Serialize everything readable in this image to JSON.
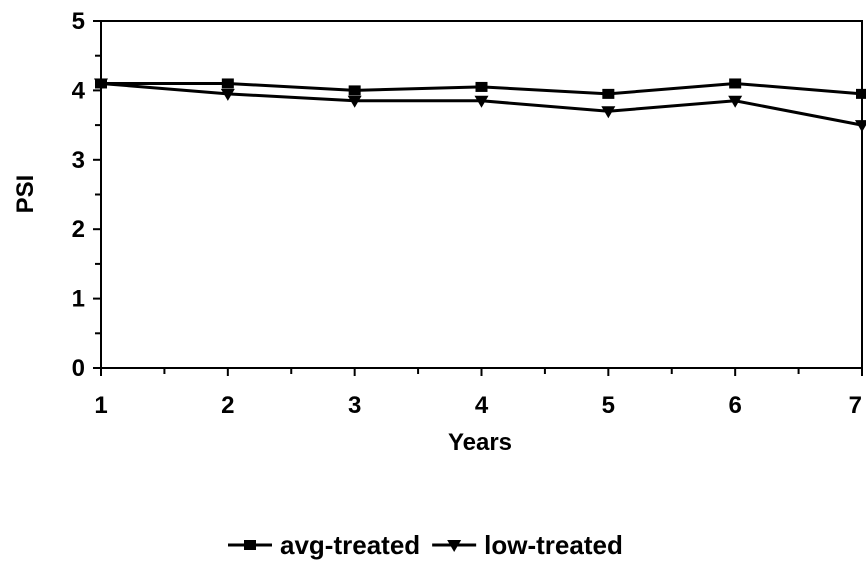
{
  "chart_data": {
    "type": "line",
    "title": "",
    "xlabel": "Years",
    "ylabel": "PSI",
    "x": [
      1,
      2,
      3,
      4,
      5,
      6,
      7
    ],
    "xlim": [
      1,
      7
    ],
    "ylim": [
      0,
      5
    ],
    "x_ticks": [
      "1",
      "2",
      "3",
      "4",
      "5",
      "6",
      "7"
    ],
    "y_ticks": [
      "0",
      "1",
      "2",
      "3",
      "4",
      "5"
    ],
    "grid": false,
    "legend_position": "bottom",
    "series": [
      {
        "name": "avg-treated",
        "marker": "square",
        "color": "#000000",
        "values": [
          4.1,
          4.1,
          4.0,
          4.05,
          3.95,
          4.1,
          3.95
        ]
      },
      {
        "name": "low-treated",
        "marker": "triangle-down",
        "color": "#000000",
        "values": [
          4.1,
          3.95,
          3.85,
          3.85,
          3.7,
          3.85,
          3.5
        ]
      }
    ]
  }
}
